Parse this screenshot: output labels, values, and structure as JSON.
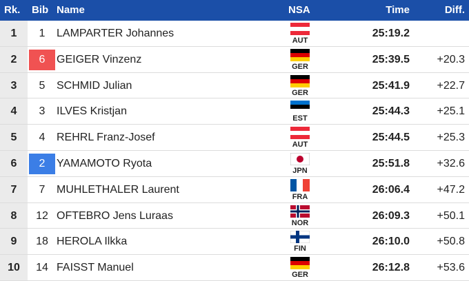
{
  "header": {
    "rank": "Rk.",
    "bib": "Bib",
    "name": "Name",
    "nsa": "NSA",
    "time": "Time",
    "diff": "Diff."
  },
  "rows": [
    {
      "rank": 1,
      "bib": 1,
      "name": "LAMPARTER Johannes",
      "nsa": "AUT",
      "time": "25:19.2",
      "diff": null
    },
    {
      "rank": 2,
      "bib": 6,
      "bib_color": "#f05252",
      "name": "GEIGER Vinzenz",
      "nsa": "GER",
      "time": "25:39.5",
      "diff": "+20.3"
    },
    {
      "rank": 3,
      "bib": 5,
      "name": "SCHMID Julian",
      "nsa": "GER",
      "time": "25:41.9",
      "diff": "+22.7"
    },
    {
      "rank": 4,
      "bib": 3,
      "name": "ILVES Kristjan",
      "nsa": "EST",
      "time": "25:44.3",
      "diff": "+25.1"
    },
    {
      "rank": 5,
      "bib": 4,
      "name": "REHRL Franz-Josef",
      "nsa": "AUT",
      "time": "25:44.5",
      "diff": "+25.3"
    },
    {
      "rank": 6,
      "bib": 2,
      "bib_color": "#3b7ee6",
      "name": "YAMAMOTO Ryota",
      "nsa": "JPN",
      "time": "25:51.8",
      "diff": "+32.6"
    },
    {
      "rank": 7,
      "bib": 7,
      "name": "MUHLETHALER Laurent",
      "nsa": "FRA",
      "time": "26:06.4",
      "diff": "+47.2"
    },
    {
      "rank": 8,
      "bib": 12,
      "name": "OFTEBRO Jens Luraas",
      "nsa": "NOR",
      "time": "26:09.3",
      "diff": "+50.1"
    },
    {
      "rank": 9,
      "bib": 18,
      "name": "HEROLA Ilkka",
      "nsa": "FIN",
      "time": "26:10.0",
      "diff": "+50.8"
    },
    {
      "rank": 10,
      "bib": 14,
      "name": "FAISST Manuel",
      "nsa": "GER",
      "time": "26:12.8",
      "diff": "+53.6"
    }
  ]
}
